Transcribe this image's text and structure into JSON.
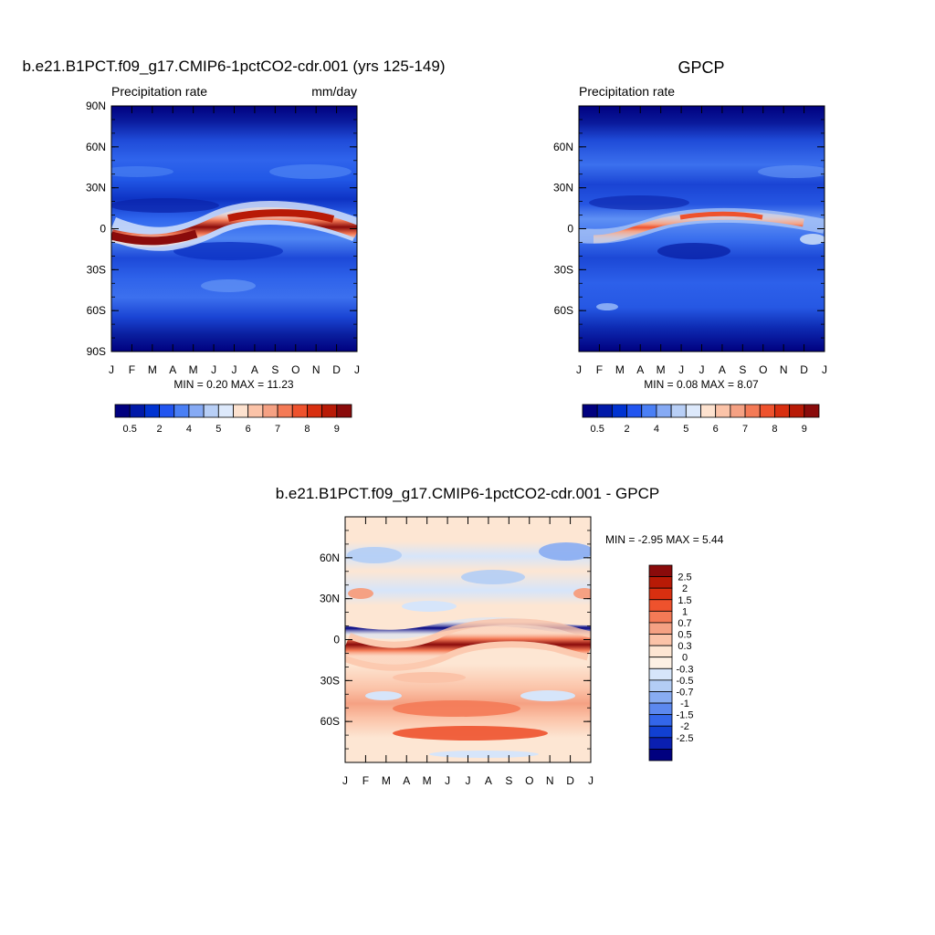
{
  "chart_data": [
    {
      "type": "heatmap",
      "title": "b.e21.B1PCT.f09_g17.CMIP6-1pctCO2-cdr.001 (yrs 125-149)",
      "left_label": "Precipitation rate",
      "right_label": "mm/day",
      "stats_text": "MIN =   0.20 MAX =  11.23",
      "min": 0.2,
      "max": 11.23,
      "x_tick_labels": [
        "J",
        "F",
        "M",
        "A",
        "M",
        "J",
        "J",
        "A",
        "S",
        "O",
        "N",
        "D",
        "J"
      ],
      "y_tick_labels": [
        "90N",
        "60N",
        "30N",
        "0",
        "30S",
        "60S",
        "90S"
      ],
      "y_tick_values": [
        90,
        60,
        30,
        0,
        -30,
        -60,
        -90
      ],
      "ylim": [
        -90,
        90
      ],
      "xlim": [
        0,
        12
      ],
      "colorbar_labels": [
        "0.5",
        "2",
        "4",
        "5",
        "6",
        "7",
        "8",
        "9"
      ],
      "colorbar_colors": [
        "#00007f",
        "#0019a8",
        "#0033d1",
        "#2255f0",
        "#4a7ff5",
        "#86aaf4",
        "#b8cff6",
        "#dde9fb",
        "#fde2cf",
        "#fbc3a8",
        "#f5a183",
        "#f47a56",
        "#ee522d",
        "#d82f10",
        "#b81a06",
        "#8a0b0b"
      ]
    },
    {
      "type": "heatmap",
      "title": "GPCP",
      "left_label": "Precipitation rate",
      "stats_text": "MIN =   0.08 MAX =   8.07",
      "min": 0.08,
      "max": 8.07,
      "x_tick_labels": [
        "J",
        "F",
        "M",
        "A",
        "M",
        "J",
        "J",
        "A",
        "S",
        "O",
        "N",
        "D",
        "J"
      ],
      "y_tick_labels": [
        "60N",
        "30N",
        "0",
        "30S",
        "60S"
      ],
      "y_tick_values": [
        60,
        30,
        0,
        -30,
        -60
      ],
      "ylim": [
        -90,
        90
      ],
      "xlim": [
        0,
        12
      ],
      "colorbar_labels": [
        "0.5",
        "2",
        "4",
        "5",
        "6",
        "7",
        "8",
        "9"
      ],
      "colorbar_colors": [
        "#00007f",
        "#0019a8",
        "#0033d1",
        "#2255f0",
        "#4a7ff5",
        "#86aaf4",
        "#b8cff6",
        "#dde9fb",
        "#fde2cf",
        "#fbc3a8",
        "#f5a183",
        "#f47a56",
        "#ee522d",
        "#d82f10",
        "#b81a06",
        "#8a0b0b"
      ]
    },
    {
      "type": "heatmap",
      "title": "b.e21.B1PCT.f09_g17.CMIP6-1pctCO2-cdr.001 - GPCP",
      "stats_text": "MIN =  -2.95 MAX =   5.44",
      "min": -2.95,
      "max": 5.44,
      "x_tick_labels": [
        "J",
        "F",
        "M",
        "A",
        "M",
        "J",
        "J",
        "A",
        "S",
        "O",
        "N",
        "D",
        "J"
      ],
      "y_tick_labels": [
        "60N",
        "30N",
        "0",
        "30S",
        "60S"
      ],
      "y_tick_values": [
        60,
        30,
        0,
        -30,
        -60
      ],
      "ylim": [
        -90,
        90
      ],
      "xlim": [
        0,
        12
      ],
      "colorbar_labels": [
        "2.5",
        "2",
        "1.5",
        "1",
        "0.7",
        "0.5",
        "0.3",
        "0",
        "-0.3",
        "-0.5",
        "-0.7",
        "-1",
        "-1.5",
        "-2",
        "-2.5"
      ],
      "colorbar_colors": [
        "#8a0b0b",
        "#b81a06",
        "#d82f10",
        "#ee522d",
        "#f47a56",
        "#f5a183",
        "#fbc3a8",
        "#fde6d3",
        "#fdf1e4",
        "#d6e5fa",
        "#b3cdf5",
        "#88acf2",
        "#5c88ef",
        "#3366ea",
        "#1140d2",
        "#0a1fb0",
        "#00007f"
      ]
    }
  ]
}
